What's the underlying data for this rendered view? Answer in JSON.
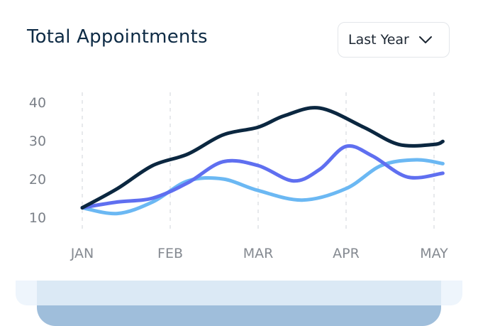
{
  "header": {
    "title": "Total Appointments",
    "period_selector": {
      "selected": "Last Year",
      "icon": "chevron-down-icon"
    }
  },
  "colors": {
    "series_dark": "#0b2740",
    "series_indigo": "#5f6ff0",
    "series_sky": "#6bb8f3",
    "gridline": "#d7dadf",
    "tick_text": "#7b8088",
    "title": "#0e2b45"
  },
  "chart_data": {
    "type": "line",
    "title": "Total Appointments",
    "xlabel": "",
    "ylabel": "",
    "categories": [
      "JAN",
      "FEB",
      "MAR",
      "APR",
      "MAY"
    ],
    "ylim": [
      10,
      40
    ],
    "yticks": [
      10,
      20,
      30,
      40
    ],
    "grid": "vertical dashed lines at each month",
    "legend": "none",
    "curve": "smooth",
    "series": [
      {
        "color": "#0b2740",
        "points": [
          {
            "x": 0.0,
            "y": 12.5
          },
          {
            "x": 0.4,
            "y": 17.5
          },
          {
            "x": 0.8,
            "y": 23.5
          },
          {
            "x": 1.2,
            "y": 26.5
          },
          {
            "x": 1.6,
            "y": 31.5
          },
          {
            "x": 2.0,
            "y": 33.5
          },
          {
            "x": 2.3,
            "y": 36.5
          },
          {
            "x": 2.7,
            "y": 38.5
          },
          {
            "x": 3.2,
            "y": 33.5
          },
          {
            "x": 3.6,
            "y": 29.0
          },
          {
            "x": 4.0,
            "y": 29.0
          },
          {
            "x": 4.1,
            "y": 29.8
          }
        ]
      },
      {
        "color": "#5f6ff0",
        "points": [
          {
            "x": 0.0,
            "y": 12.5
          },
          {
            "x": 0.4,
            "y": 14.0
          },
          {
            "x": 0.8,
            "y": 15.0
          },
          {
            "x": 1.2,
            "y": 19.0
          },
          {
            "x": 1.6,
            "y": 24.5
          },
          {
            "x": 2.0,
            "y": 23.5
          },
          {
            "x": 2.4,
            "y": 19.5
          },
          {
            "x": 2.7,
            "y": 22.5
          },
          {
            "x": 3.0,
            "y": 28.5
          },
          {
            "x": 3.3,
            "y": 26.0
          },
          {
            "x": 3.7,
            "y": 20.5
          },
          {
            "x": 4.1,
            "y": 21.5
          }
        ]
      },
      {
        "color": "#6bb8f3",
        "points": [
          {
            "x": 0.0,
            "y": 12.5
          },
          {
            "x": 0.4,
            "y": 11.0
          },
          {
            "x": 0.8,
            "y": 14.0
          },
          {
            "x": 1.2,
            "y": 19.5
          },
          {
            "x": 1.6,
            "y": 20.0
          },
          {
            "x": 2.0,
            "y": 17.0
          },
          {
            "x": 2.5,
            "y": 14.5
          },
          {
            "x": 3.0,
            "y": 17.5
          },
          {
            "x": 3.4,
            "y": 23.5
          },
          {
            "x": 3.8,
            "y": 25.0
          },
          {
            "x": 4.1,
            "y": 24.0
          }
        ]
      }
    ]
  }
}
